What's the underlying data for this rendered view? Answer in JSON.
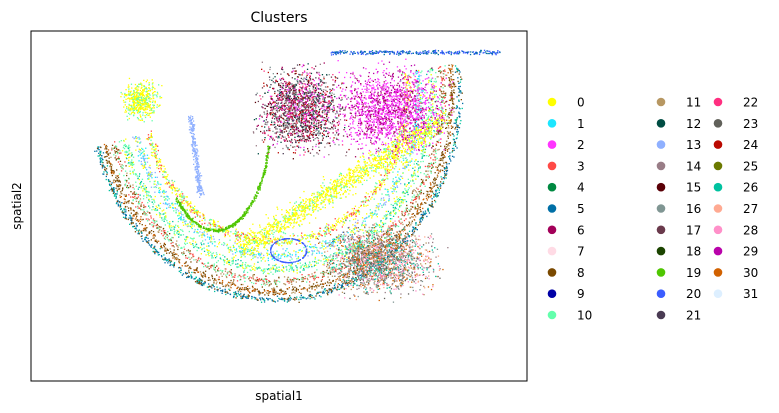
{
  "chart_data": {
    "type": "scatter",
    "title": "Clusters",
    "xlabel": "spatial1",
    "ylabel": "spatial2",
    "legend_title": "",
    "legend_placement": "right",
    "grid": false,
    "x_ticks": [],
    "y_ticks": [],
    "series": [
      {
        "name": "0",
        "color": "#ffff00"
      },
      {
        "name": "1",
        "color": "#1ce6ff"
      },
      {
        "name": "2",
        "color": "#ff34ff"
      },
      {
        "name": "3",
        "color": "#ff4a46"
      },
      {
        "name": "4",
        "color": "#008941"
      },
      {
        "name": "5",
        "color": "#006fa6"
      },
      {
        "name": "6",
        "color": "#a30059"
      },
      {
        "name": "7",
        "color": "#ffdbe5"
      },
      {
        "name": "8",
        "color": "#7a4900"
      },
      {
        "name": "9",
        "color": "#0000a6"
      },
      {
        "name": "10",
        "color": "#63ffac"
      },
      {
        "name": "11",
        "color": "#b79762"
      },
      {
        "name": "12",
        "color": "#004d43"
      },
      {
        "name": "13",
        "color": "#8fb0ff"
      },
      {
        "name": "14",
        "color": "#997d87"
      },
      {
        "name": "15",
        "color": "#5a0007"
      },
      {
        "name": "16",
        "color": "#809693"
      },
      {
        "name": "17",
        "color": "#6a3a4c"
      },
      {
        "name": "18",
        "color": "#1b4400"
      },
      {
        "name": "19",
        "color": "#4fc601"
      },
      {
        "name": "20",
        "color": "#3b5dff"
      },
      {
        "name": "21",
        "color": "#4a3b53"
      },
      {
        "name": "22",
        "color": "#ff2f80"
      },
      {
        "name": "23",
        "color": "#61615a"
      },
      {
        "name": "24",
        "color": "#ba0900"
      },
      {
        "name": "25",
        "color": "#6b7900"
      },
      {
        "name": "26",
        "color": "#00c2a0"
      },
      {
        "name": "27",
        "color": "#ffaa92"
      },
      {
        "name": "28",
        "color": "#ff90c9"
      },
      {
        "name": "29",
        "color": "#b903aa"
      },
      {
        "name": "30",
        "color": "#d16100"
      },
      {
        "name": "31",
        "color": "#ddefff"
      }
    ]
  }
}
